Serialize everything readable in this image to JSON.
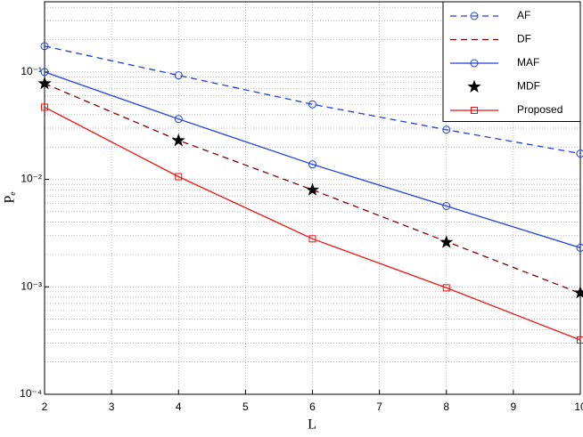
{
  "chart_data": {
    "type": "line",
    "xlabel": "L",
    "ylabel": "Pₑ",
    "x": [
      2,
      4,
      6,
      8,
      10
    ],
    "xlim": [
      2,
      10
    ],
    "xticks": [
      2,
      3,
      4,
      5,
      6,
      7,
      8,
      9,
      10
    ],
    "ylim": [
      0.0001,
      0.45
    ],
    "log_y": true,
    "yticks": [
      {
        "value": 0.0001,
        "label": "10⁻⁴"
      },
      {
        "value": 0.001,
        "label": "10⁻³"
      },
      {
        "value": 0.01,
        "label": "10⁻²"
      },
      {
        "value": 0.1,
        "label": "10⁻¹"
      }
    ],
    "grid": true,
    "legend": "upper right",
    "series": [
      {
        "name": "AF",
        "color": "#1f3fe0",
        "line_style": "dashed",
        "marker": "circle",
        "values": [
          0.174,
          0.093,
          0.05,
          0.029,
          0.0174
        ]
      },
      {
        "name": "DF",
        "color": "#800000",
        "line_style": "dashed",
        "marker": "none",
        "values": [
          0.078,
          0.0231,
          0.008,
          0.00264,
          0.00087
        ]
      },
      {
        "name": "MAF",
        "color": "#1f3fe0",
        "line_style": "solid",
        "marker": "circle",
        "values": [
          0.1,
          0.0365,
          0.0138,
          0.00565,
          0.00231
        ]
      },
      {
        "name": "MDF",
        "color": "#000000",
        "line_style": "none",
        "marker": "star",
        "values": [
          0.078,
          0.023,
          0.008,
          0.0026,
          0.00088
        ]
      },
      {
        "name": "Proposed",
        "color": "#ee1111",
        "line_style": "solid",
        "marker": "square",
        "values": [
          0.047,
          0.0106,
          0.0028,
          0.00098,
          0.00032
        ]
      }
    ]
  }
}
